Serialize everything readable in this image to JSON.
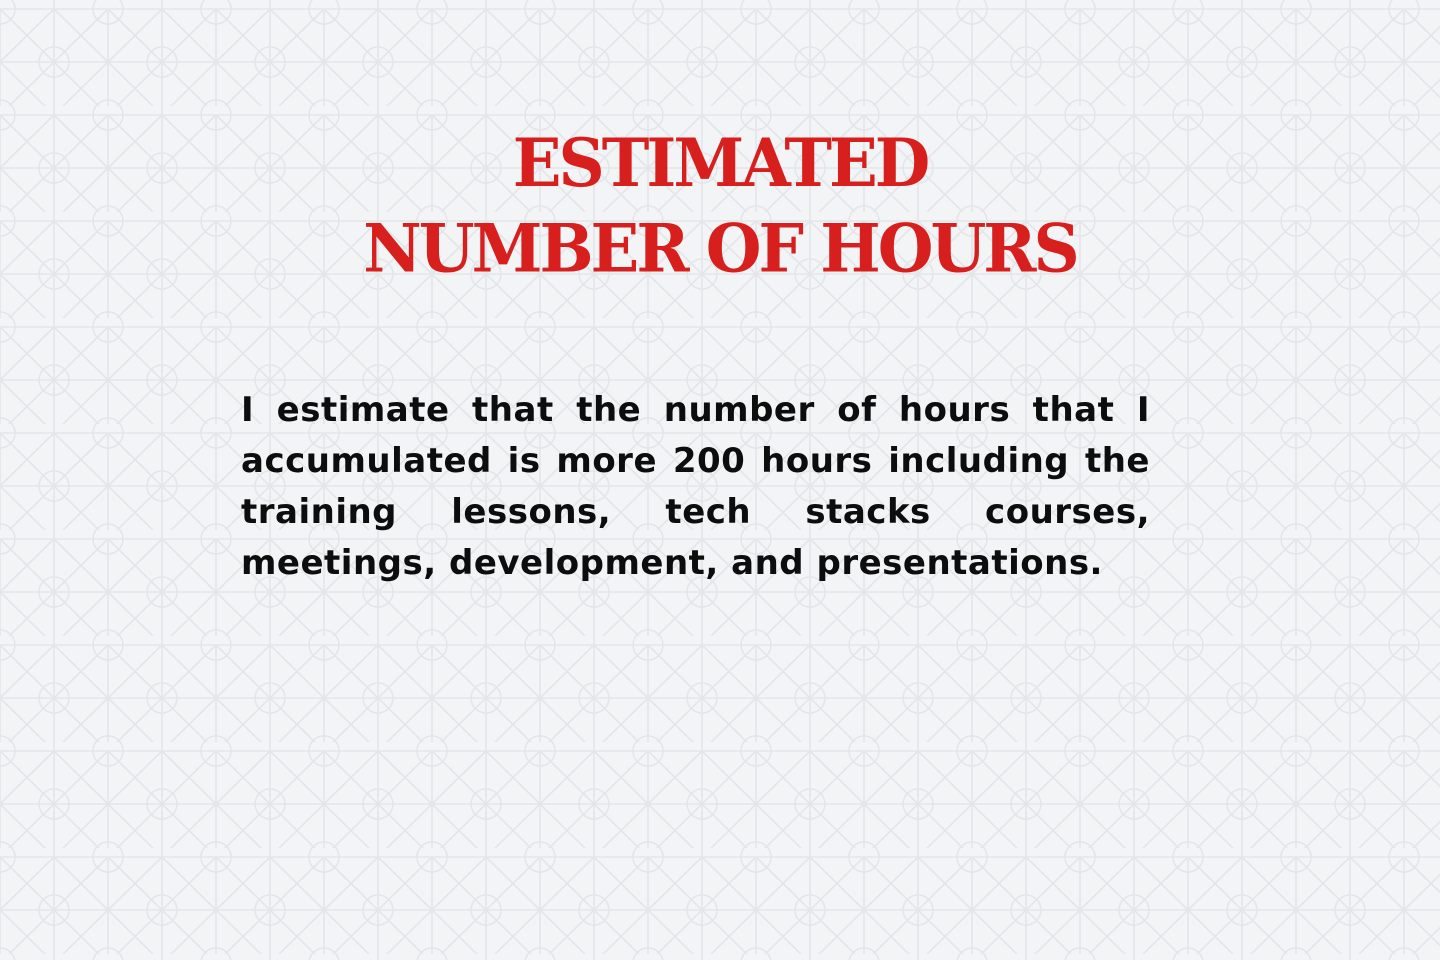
{
  "theme": {
    "background": "#f3f4f6",
    "pattern_stroke": "#e4e6ea",
    "title_color": "#d7201e",
    "text_color": "#0d0d0d"
  },
  "slide": {
    "title_line1": "ESTIMATED",
    "title_line2": "NUMBER OF HOURS",
    "body": "I estimate that the number of hours that I accumulated is more 200 hours including the training lessons, tech stacks courses, meetings, development, and presentations."
  }
}
